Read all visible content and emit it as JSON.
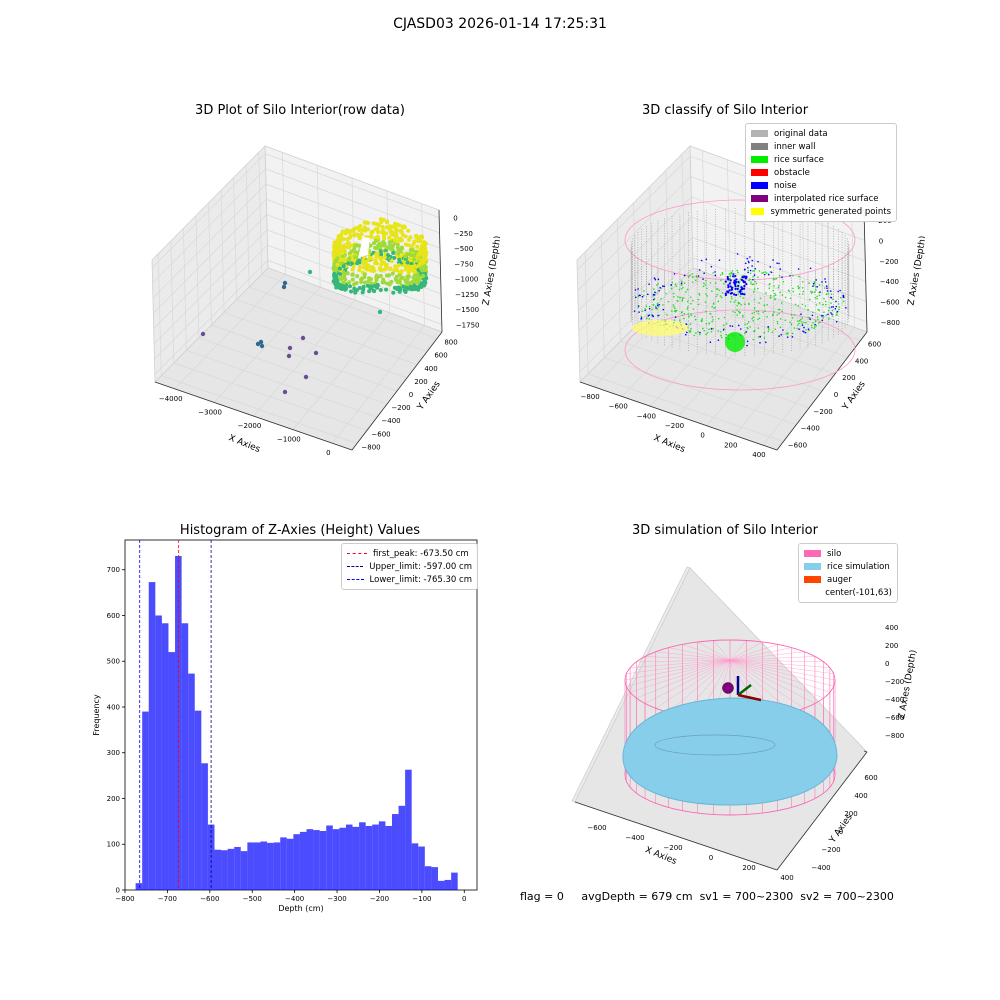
{
  "figure": {
    "suptitle": "CJASD03 2026-01-14 17:25:31",
    "status": {
      "flag": "flag = 0",
      "avg_depth": "avgDepth = 679 cm",
      "sv1": "sv1 = 700~2300",
      "sv2": "sv2 = 700~2300"
    }
  },
  "chart_data": [
    {
      "type": "scatter",
      "subtype": "3d",
      "title": "3D Plot of Silo Interior(row data)",
      "xlabel": "X Axies",
      "ylabel": "Y Axies",
      "zlabel": "Z Axies (Depth)",
      "x_ticks": [
        "−4000",
        "−3000",
        "−2000",
        "−1000",
        "0"
      ],
      "y_ticks": [
        "800",
        "600",
        "400",
        "200",
        "0",
        "−200",
        "−400",
        "−600",
        "−800"
      ],
      "z_ticks": [
        "0",
        "−250",
        "−500",
        "−750",
        "−1000",
        "−1250",
        "−1500",
        "−1750"
      ],
      "colormap": "viridis",
      "description_shape": "dense ring of points",
      "colors": {
        "high": "#e7e419",
        "mid": "#35b779",
        "low": "#31688e",
        "outlier": "#6a4c93"
      }
    },
    {
      "type": "scatter",
      "subtype": "3d",
      "title": "3D classify of Silo Interior",
      "xlabel": "X Axies",
      "ylabel": "Y Axies",
      "zlabel": "Z Axies (Depth)",
      "x_ticks": [
        "−800",
        "−600",
        "−400",
        "−200",
        "0",
        "200",
        "400"
      ],
      "y_ticks": [
        "600",
        "400",
        "200",
        "0",
        "−200",
        "−400",
        "−600"
      ],
      "z_ticks": [
        "200",
        "0",
        "−200",
        "−400",
        "−600",
        "−800"
      ],
      "legend": [
        {
          "label": "original data",
          "color": "#b3b3b3"
        },
        {
          "label": "inner wall",
          "color": "#808080"
        },
        {
          "label": "rice surface",
          "color": "#00ee00"
        },
        {
          "label": "obstacle",
          "color": "#ff0000"
        },
        {
          "label": "noise",
          "color": "#0000ff"
        },
        {
          "label": "interpolated rice surface",
          "color": "#800080"
        },
        {
          "label": "symmetric generated points",
          "color": "#ffff00"
        }
      ],
      "top_tick_extra": "0"
    },
    {
      "type": "bar",
      "subtype": "histogram",
      "title": "Histogram of Z-Axies (Height) Values",
      "xlabel": "Depth (cm)",
      "ylabel": "Frequency",
      "xlim": [
        -800,
        30
      ],
      "ylim": [
        0,
        765
      ],
      "x_ticks": [
        -800,
        -700,
        -600,
        -500,
        -400,
        -300,
        -200,
        -100,
        0
      ],
      "y_ticks": [
        0,
        100,
        200,
        300,
        400,
        500,
        600,
        700
      ],
      "bar_color": "#0000ff",
      "bin_edges_start": -775,
      "bin_width": 15.5,
      "values": [
        15,
        390,
        673,
        600,
        583,
        520,
        730,
        583,
        473,
        392,
        277,
        143,
        88,
        87,
        90,
        94,
        85,
        104,
        104,
        106,
        103,
        104,
        115,
        112,
        122,
        127,
        133,
        131,
        129,
        141,
        133,
        136,
        143,
        138,
        148,
        140,
        143,
        150,
        140,
        166,
        184,
        263,
        102,
        95,
        52,
        50,
        20,
        22,
        38,
        0
      ],
      "vlines": [
        {
          "label": "first_peak: -673.50 cm",
          "x": -673.5,
          "color": "#ff0000"
        },
        {
          "label": "Upper_limit: -597.00 cm",
          "x": -597.0,
          "color": "#00008b"
        },
        {
          "label": "Lower_limit: -765.30 cm",
          "x": -765.3,
          "color": "#0000ff"
        }
      ]
    },
    {
      "type": "scatter",
      "subtype": "3d",
      "title": "3D simulation of Silo Interior",
      "xlabel": "X Axies",
      "ylabel": "Y Axies",
      "zlabel": "Z Axies (Depth)",
      "x_ticks": [
        "−600",
        "−400",
        "−200",
        "0",
        "200",
        "400"
      ],
      "y_ticks": [
        "600",
        "400",
        "200",
        "0",
        "−200",
        "−400",
        "−600"
      ],
      "z_ticks": [
        "400",
        "200",
        "0",
        "−200",
        "−400",
        "−600",
        "−800"
      ],
      "legend": [
        {
          "label": "silo",
          "color": "#ff69b4"
        },
        {
          "label": "rice simulation",
          "color": "#87ceeb"
        },
        {
          "label": "auger",
          "color": "#ff4500"
        },
        {
          "label": "center(-101,63)",
          "color": ""
        }
      ]
    }
  ]
}
